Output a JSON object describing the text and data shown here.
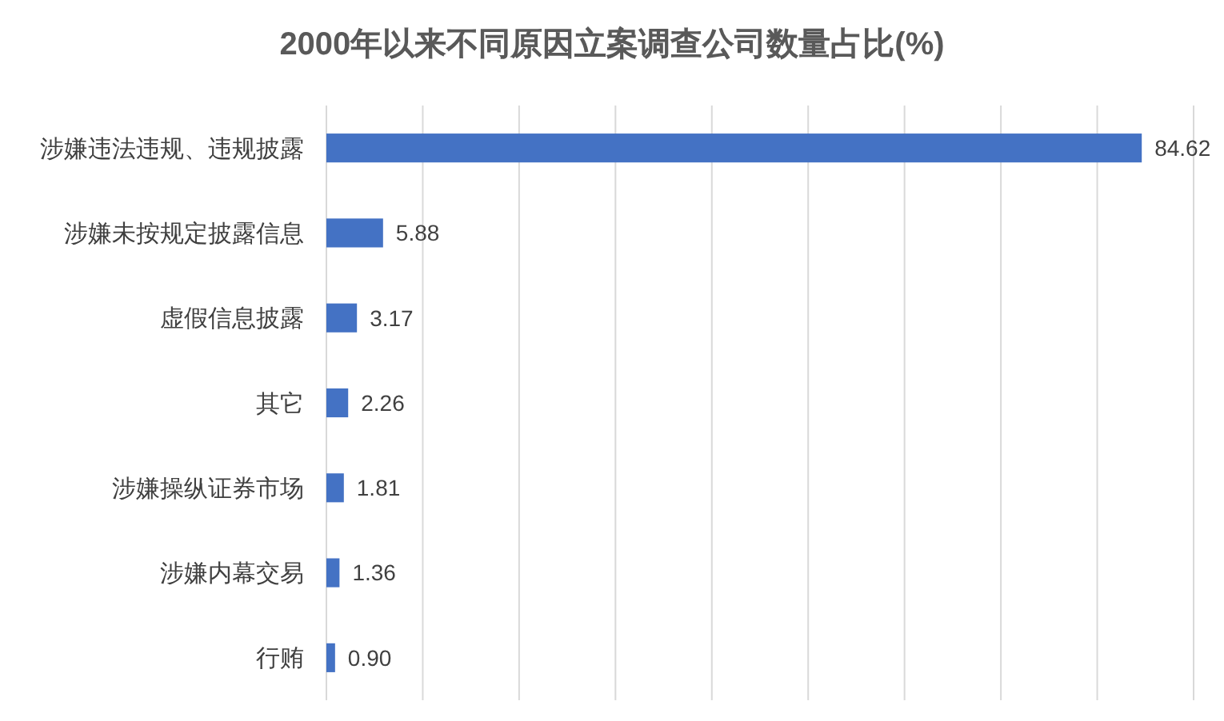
{
  "chart_data": {
    "type": "bar",
    "orientation": "horizontal",
    "title": "2000年以来不同原因立案调查公司数量占比(%)",
    "categories": [
      "涉嫌违法违规、违规披露",
      "涉嫌未按规定披露信息",
      "虚假信息披露",
      "其它",
      "涉嫌操纵证券市场",
      "涉嫌内幕交易",
      "行贿"
    ],
    "values": [
      84.62,
      5.88,
      3.17,
      2.26,
      1.81,
      1.36,
      0.9
    ],
    "value_labels": [
      "84.62",
      "5.88",
      "3.17",
      "2.26",
      "1.81",
      "1.36",
      "0.90"
    ],
    "color": "#4472c4",
    "xlim": [
      0,
      90
    ],
    "xticks": [
      {
        "value": 0,
        "label": null
      },
      {
        "value": 10,
        "label": null
      },
      {
        "value": 20,
        "label": null
      },
      {
        "value": 30,
        "label": null
      },
      {
        "value": 40,
        "label": null
      },
      {
        "value": 50,
        "label": null
      },
      {
        "value": 60,
        "label": null
      },
      {
        "value": 70,
        "label": null
      },
      {
        "value": 80,
        "label": null
      },
      {
        "value": 90,
        "label": null
      }
    ],
    "grid": "x",
    "tick_labels": "y"
  }
}
